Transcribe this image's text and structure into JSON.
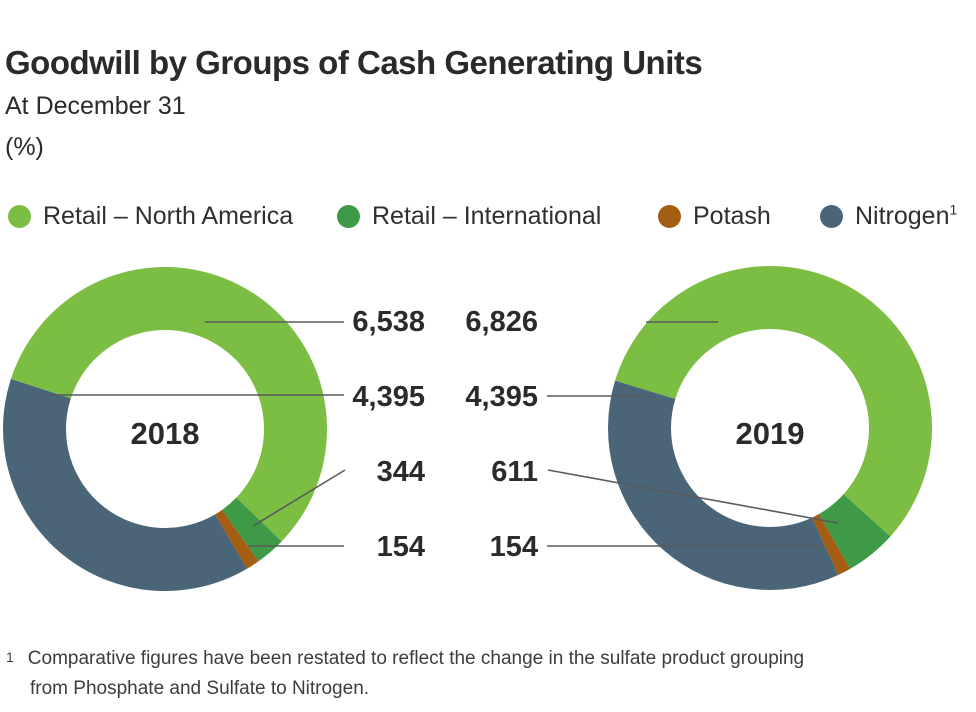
{
  "header": {
    "title": "Goodwill by Groups of Cash Generating Units",
    "subtitle": "At December 31",
    "unit_label": "(%)"
  },
  "legend": {
    "items": [
      {
        "label": "Retail – North America",
        "color": "#7cbe43",
        "superscript": ""
      },
      {
        "label": "Retail – International",
        "color": "#3f9a47",
        "superscript": ""
      },
      {
        "label": "Potash",
        "color": "#a45e13",
        "superscript": ""
      },
      {
        "label": "Nitrogen",
        "color": "#4a6578",
        "superscript": "1"
      }
    ]
  },
  "chart_data": {
    "type": "pie",
    "variant": "donut",
    "title": "Goodwill by Groups of Cash Generating Units",
    "categories": [
      "Retail – North America",
      "Retail – International",
      "Potash",
      "Nitrogen"
    ],
    "colors": [
      "#7cbe43",
      "#3f9a47",
      "#a45e13",
      "#4a6578"
    ],
    "direction": "clockwise",
    "series": [
      {
        "name": "2018",
        "start_angle_deg": 162,
        "values": [
          6538,
          344,
          154,
          4395
        ]
      },
      {
        "name": "2019",
        "start_angle_deg": 163,
        "values": [
          6826,
          611,
          154,
          4395
        ]
      }
    ],
    "label_rows": [
      {
        "category": "Retail – North America",
        "left": "6,538",
        "right": "6,826"
      },
      {
        "category": "Nitrogen",
        "left": "4,395",
        "right": "4,395"
      },
      {
        "category": "Retail – International",
        "left": "344",
        "right": "611"
      },
      {
        "category": "Potash",
        "left": "154",
        "right": "154"
      }
    ]
  },
  "footnote": {
    "marker": "1",
    "line1": "Comparative figures have been restated to reflect the change in the sulfate product grouping",
    "line2": "from Phosphate and Sulfate to Nitrogen."
  }
}
